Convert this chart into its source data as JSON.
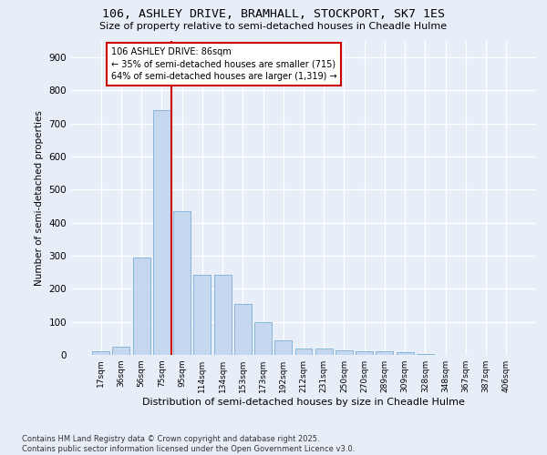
{
  "title1": "106, ASHLEY DRIVE, BRAMHALL, STOCKPORT, SK7 1ES",
  "title2": "Size of property relative to semi-detached houses in Cheadle Hulme",
  "xlabel": "Distribution of semi-detached houses by size in Cheadle Hulme",
  "ylabel": "Number of semi-detached properties",
  "categories": [
    "17sqm",
    "36sqm",
    "56sqm",
    "75sqm",
    "95sqm",
    "114sqm",
    "134sqm",
    "153sqm",
    "173sqm",
    "192sqm",
    "212sqm",
    "231sqm",
    "250sqm",
    "270sqm",
    "289sqm",
    "309sqm",
    "328sqm",
    "348sqm",
    "367sqm",
    "387sqm",
    "406sqm"
  ],
  "values": [
    10,
    25,
    295,
    740,
    435,
    242,
    242,
    155,
    100,
    45,
    20,
    20,
    13,
    10,
    10,
    8,
    2,
    0,
    0,
    0,
    0
  ],
  "bar_color": "#c5d8ef",
  "bar_edge_color": "#7aafd4",
  "vline_x": 3.5,
  "vline_color": "#cc0000",
  "annotation_title": "106 ASHLEY DRIVE: 86sqm",
  "annotation_line1": "← 35% of semi-detached houses are smaller (715)",
  "annotation_line2": "64% of semi-detached houses are larger (1,319) →",
  "annotation_box_color": "#ffffff",
  "annotation_box_edge": "#cc0000",
  "footer1": "Contains HM Land Registry data © Crown copyright and database right 2025.",
  "footer2": "Contains public sector information licensed under the Open Government Licence v3.0.",
  "background_color": "#e8eef8",
  "ylim": [
    0,
    950
  ],
  "yticks": [
    0,
    100,
    200,
    300,
    400,
    500,
    600,
    700,
    800,
    900
  ]
}
